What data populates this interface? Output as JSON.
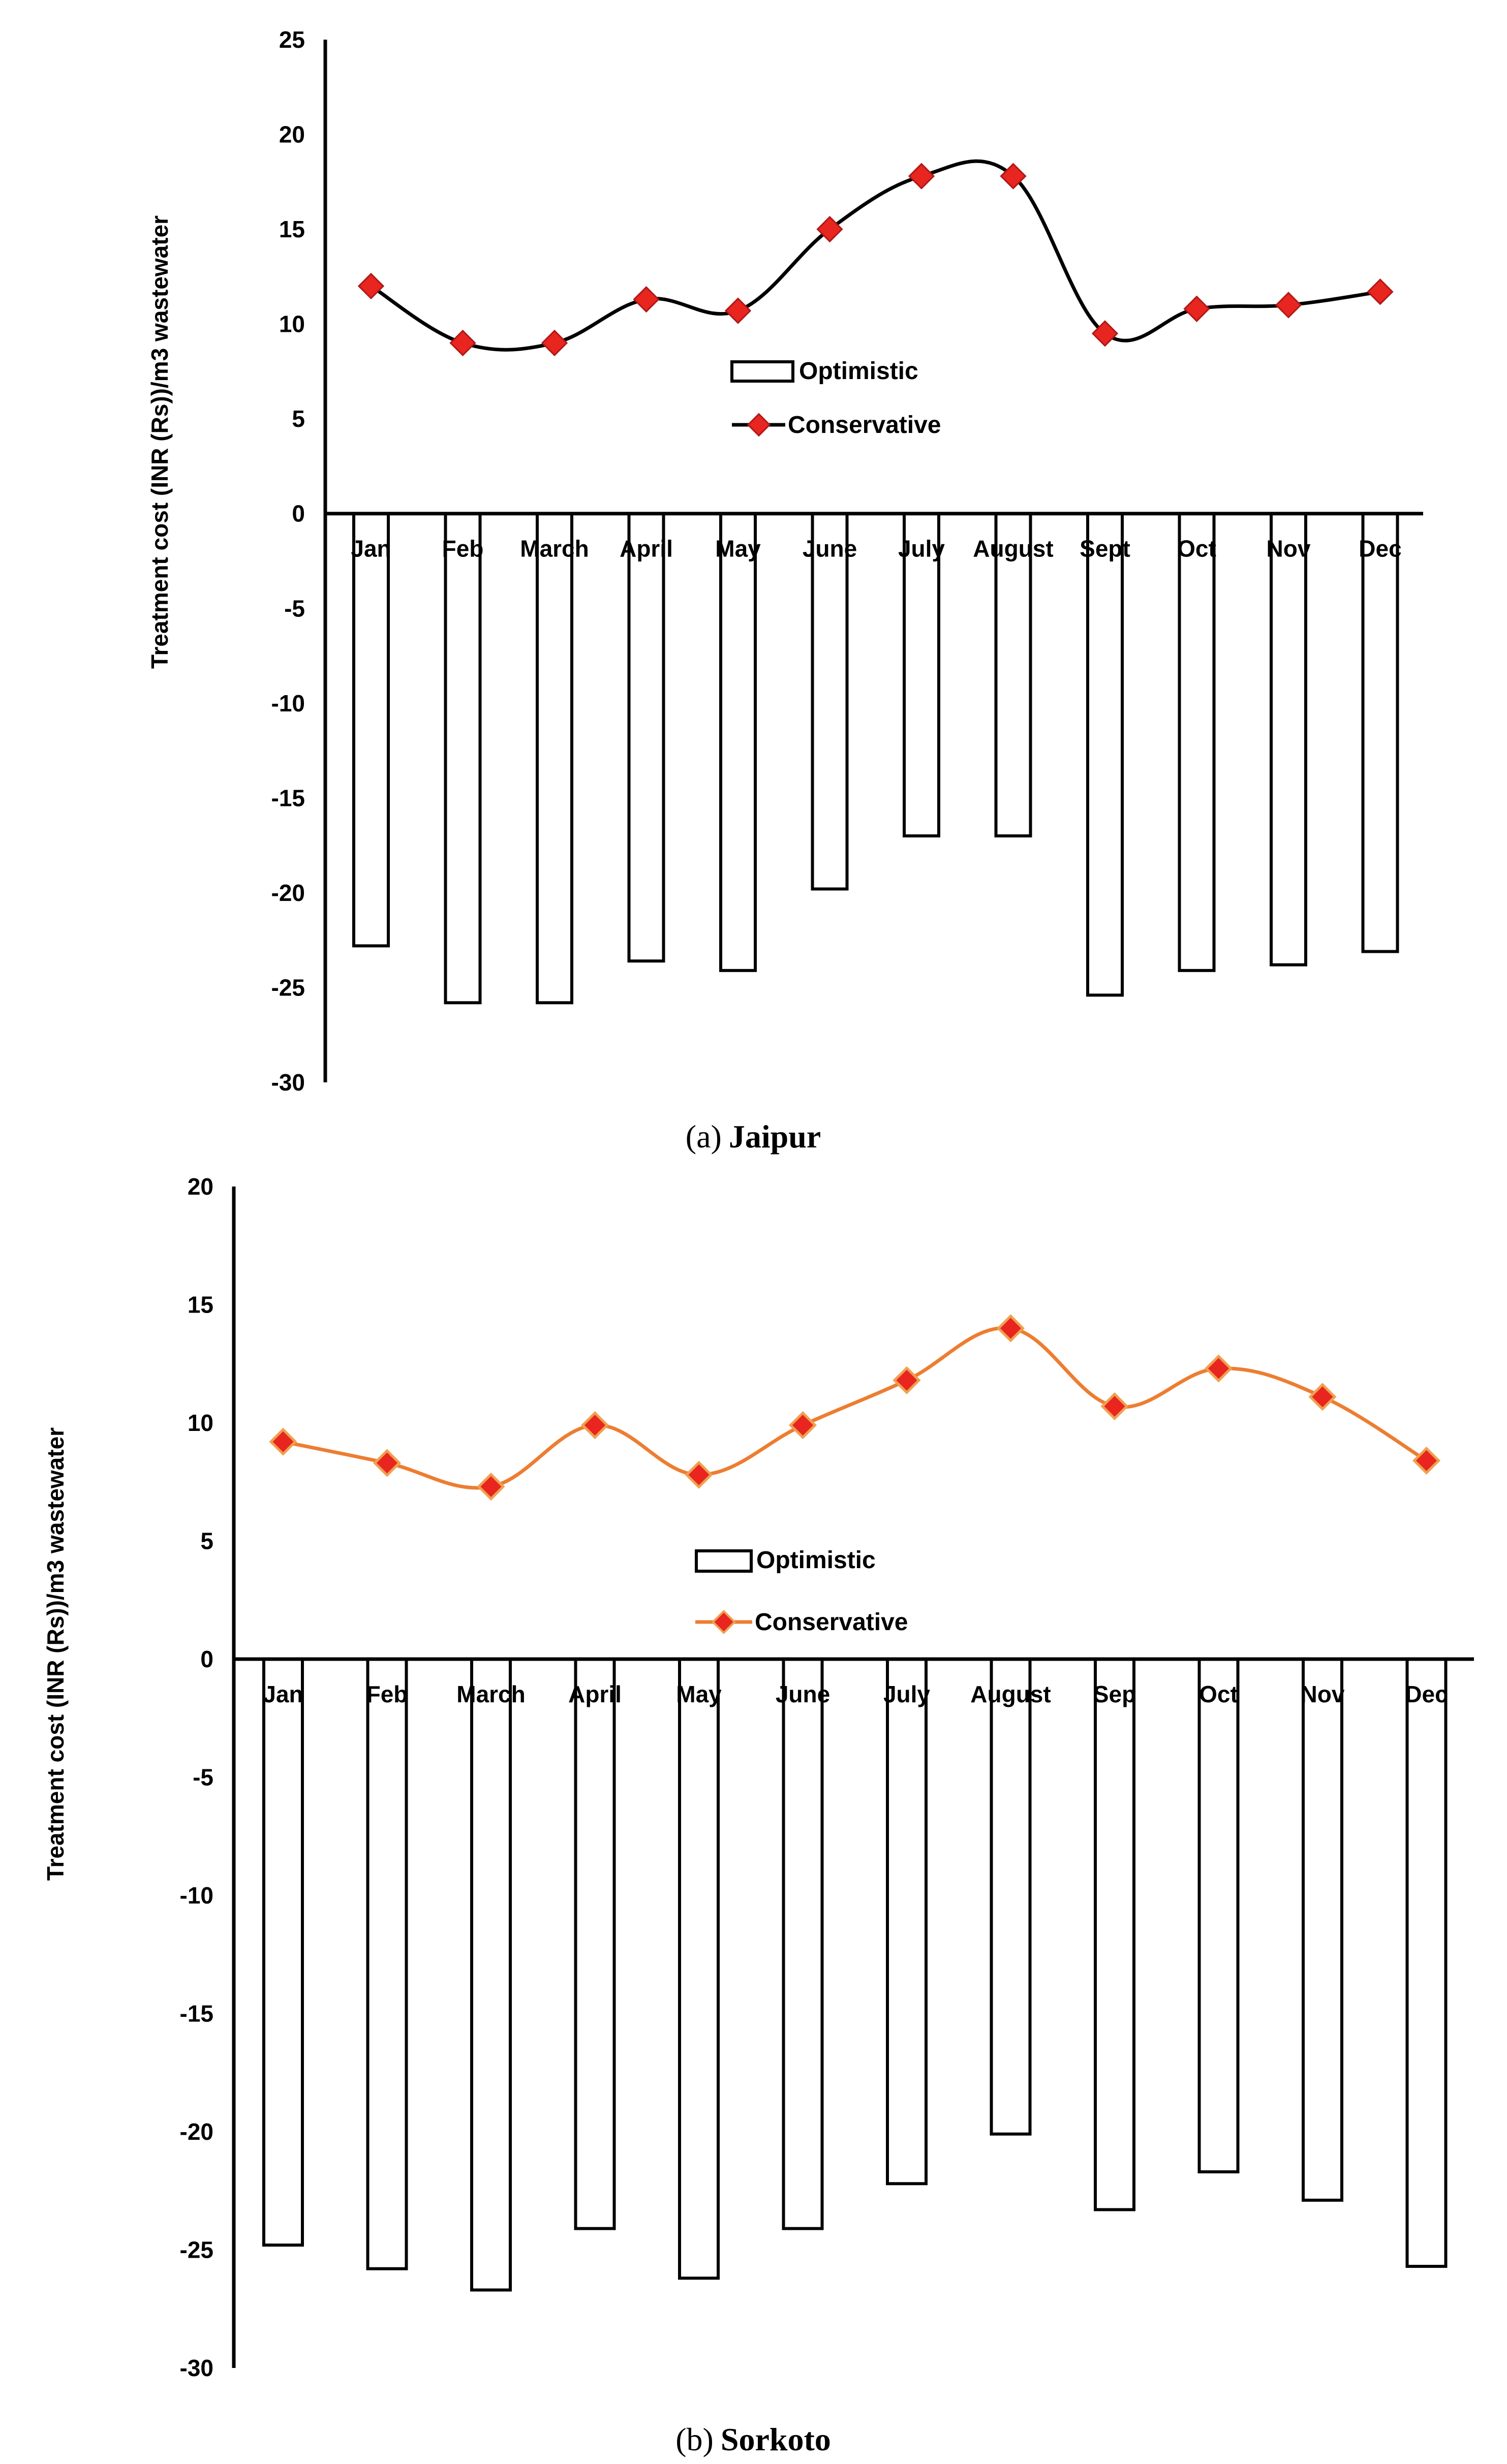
{
  "chart_data": [
    {
      "type": "bar+line",
      "caption_label": "(a)",
      "caption_title": "Jaipur",
      "ylabel": "Treatment cost (INR (Rs))/m3 wastewater",
      "ylim": [
        -30,
        25
      ],
      "ytick_step": 5,
      "categories": [
        "Jan",
        "Feb",
        "March",
        "April",
        "May",
        "June",
        "July",
        "August",
        "Sept",
        "Oct",
        "Nov",
        "Dec"
      ],
      "series": [
        {
          "name": "Optimistic",
          "kind": "bar",
          "values": [
            -22.8,
            -25.8,
            -25.8,
            -23.6,
            -24.1,
            -19.8,
            -17.0,
            -17.0,
            -25.4,
            -24.1,
            -23.8,
            -23.1
          ]
        },
        {
          "name": "Conservative",
          "kind": "line",
          "color": "#000000",
          "marker_color": "#e8251f",
          "values": [
            12.0,
            9.0,
            9.0,
            11.3,
            10.7,
            15.0,
            17.8,
            17.8,
            9.5,
            10.8,
            11.0,
            11.7
          ]
        }
      ]
    },
    {
      "type": "bar+line",
      "caption_label": "(b)",
      "caption_title": "Sorkoto",
      "ylabel": "Treatment cost (INR (Rs))/m3 wastewater",
      "ylim": [
        -30,
        20
      ],
      "ytick_step": 5,
      "categories": [
        "Jan",
        "Feb",
        "March",
        "April",
        "May",
        "June",
        "July",
        "August",
        "Sep",
        "Oct",
        "Nov",
        "Dec"
      ],
      "series": [
        {
          "name": "Optimistic",
          "kind": "bar",
          "values": [
            -24.8,
            -25.8,
            -26.7,
            -24.1,
            -26.2,
            -24.1,
            -22.2,
            -20.1,
            -23.3,
            -21.7,
            -22.9,
            -25.7
          ]
        },
        {
          "name": "Conservative",
          "kind": "line",
          "color": "#ed7d31",
          "marker_color": "#e8251f",
          "values": [
            9.2,
            8.3,
            7.3,
            9.9,
            7.8,
            9.9,
            11.8,
            14.0,
            10.7,
            12.3,
            11.1,
            8.4
          ]
        }
      ]
    }
  ]
}
